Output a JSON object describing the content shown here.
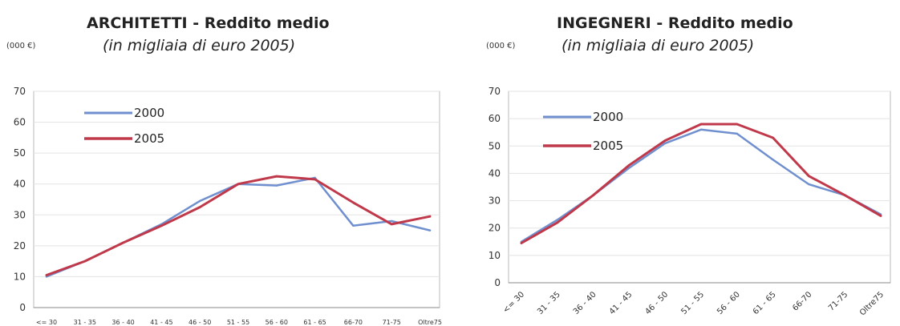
{
  "chart_data": [
    {
      "type": "line",
      "title": "ARCHITETTI - Reddito medio",
      "subtitle": "(in migliaia di euro 2005)",
      "unit_label": "(000 €)",
      "categories": [
        "<= 30",
        "31 - 35",
        "36 - 40",
        "41 - 45",
        "46 - 50",
        "51 - 55",
        "56 - 60",
        "61 - 65",
        "66-70",
        "71-75",
        "Oltre75"
      ],
      "series": [
        {
          "name": "2000",
          "color": "#6f8fcf",
          "values": [
            10,
            15,
            21,
            27,
            34.5,
            40,
            39.5,
            42,
            26.5,
            28,
            25
          ]
        },
        {
          "name": "2005",
          "color": "#c0394a",
          "values": [
            10.5,
            15,
            21,
            26.5,
            32.5,
            40,
            42.5,
            41.5,
            34,
            27,
            29.5
          ]
        }
      ],
      "ylim": [
        0,
        70
      ],
      "yticks": [
        0,
        10,
        20,
        30,
        40,
        50,
        60,
        70
      ],
      "grid": true,
      "legend": "top-left"
    },
    {
      "type": "line",
      "title": "INGEGNERI - Reddito medio",
      "subtitle": "(in migliaia di euro 2005)",
      "unit_label": "(000 €)",
      "categories": [
        "<= 30",
        "31 - 35",
        "36 - 40",
        "41 - 45",
        "46 - 50",
        "51 - 55",
        "56 - 60",
        "61 - 65",
        "66-70",
        "71-75",
        "Oltre75"
      ],
      "series": [
        {
          "name": "2000",
          "color": "#6f8fcf",
          "values": [
            15,
            23,
            32,
            42,
            51,
            56,
            54.5,
            45,
            36,
            32,
            25
          ]
        },
        {
          "name": "2005",
          "color": "#c0394a",
          "values": [
            14.5,
            22,
            32,
            43,
            52,
            58,
            58,
            53,
            39,
            32,
            24.5
          ]
        }
      ],
      "ylim": [
        0,
        70
      ],
      "yticks": [
        0,
        10,
        20,
        30,
        40,
        50,
        60,
        70
      ],
      "grid": true,
      "legend": "top-left"
    }
  ]
}
